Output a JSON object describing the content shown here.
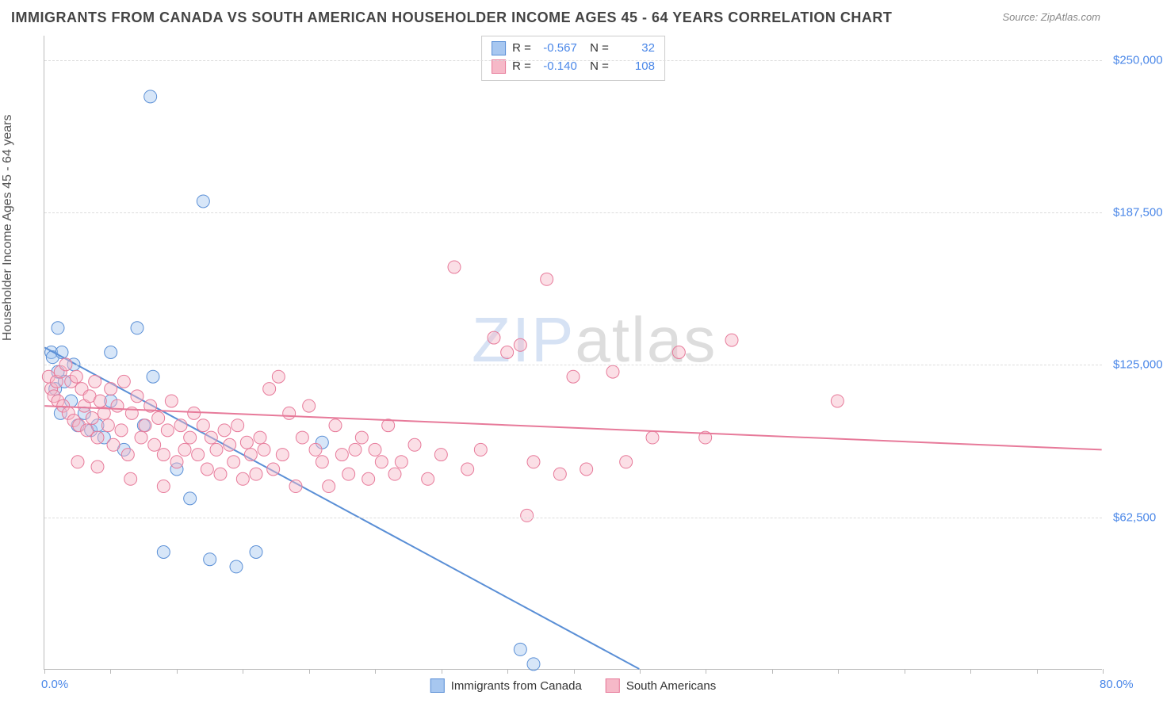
{
  "title": "IMMIGRANTS FROM CANADA VS SOUTH AMERICAN HOUSEHOLDER INCOME AGES 45 - 64 YEARS CORRELATION CHART",
  "source": "Source: ZipAtlas.com",
  "ylabel": "Householder Income Ages 45 - 64 years",
  "watermark": {
    "part1": "ZIP",
    "part2": "atlas"
  },
  "chart": {
    "type": "scatter",
    "background_color": "#ffffff",
    "grid_color": "#dddddd",
    "axis_color": "#bbbbbb",
    "xlim": [
      0,
      80
    ],
    "ylim": [
      0,
      260000
    ],
    "x_ticks": [
      0,
      5,
      10,
      15,
      20,
      25,
      30,
      35,
      40,
      45,
      50,
      55,
      60,
      65,
      70,
      75,
      80
    ],
    "x_tick_labels": {
      "0": "0.0%",
      "80": "80.0%"
    },
    "y_gridlines": [
      62500,
      125000,
      187500,
      250000
    ],
    "y_tick_labels": {
      "62500": "$62,500",
      "125000": "$125,000",
      "187500": "$187,500",
      "250000": "$250,000"
    },
    "marker_radius": 8,
    "marker_opacity": 0.45,
    "label_fontsize": 15,
    "tick_color": "#4a87e8"
  },
  "series": [
    {
      "name": "Immigrants from Canada",
      "color_fill": "#a7c7f0",
      "color_stroke": "#5a8fd6",
      "R": "-0.567",
      "N": "32",
      "trend": {
        "x1": 0,
        "y1": 132000,
        "x2": 45,
        "y2": 0,
        "width": 2
      },
      "points": [
        [
          0.5,
          130000
        ],
        [
          0.6,
          128000
        ],
        [
          0.8,
          115000
        ],
        [
          1.0,
          122000
        ],
        [
          1.2,
          105000
        ],
        [
          1.0,
          140000
        ],
        [
          1.3,
          130000
        ],
        [
          1.5,
          118000
        ],
        [
          2.0,
          110000
        ],
        [
          2.2,
          125000
        ],
        [
          2.5,
          100000
        ],
        [
          3.0,
          105000
        ],
        [
          3.5,
          98000
        ],
        [
          4.0,
          100000
        ],
        [
          4.5,
          95000
        ],
        [
          5.0,
          130000
        ],
        [
          5.0,
          110000
        ],
        [
          6.0,
          90000
        ],
        [
          7.0,
          140000
        ],
        [
          7.5,
          100000
        ],
        [
          8.0,
          235000
        ],
        [
          8.2,
          120000
        ],
        [
          9.0,
          48000
        ],
        [
          10.0,
          82000
        ],
        [
          11.0,
          70000
        ],
        [
          12.0,
          192000
        ],
        [
          12.5,
          45000
        ],
        [
          14.5,
          42000
        ],
        [
          16.0,
          48000
        ],
        [
          21.0,
          93000
        ],
        [
          36.0,
          8000
        ],
        [
          37.0,
          2000
        ]
      ]
    },
    {
      "name": "South Americans",
      "color_fill": "#f6b9c8",
      "color_stroke": "#e77a9a",
      "R": "-0.140",
      "N": "108",
      "trend": {
        "x1": 0,
        "y1": 108000,
        "x2": 80,
        "y2": 90000,
        "width": 2
      },
      "points": [
        [
          0.3,
          120000
        ],
        [
          0.5,
          115000
        ],
        [
          0.7,
          112000
        ],
        [
          0.9,
          118000
        ],
        [
          1.0,
          110000
        ],
        [
          1.2,
          122000
        ],
        [
          1.4,
          108000
        ],
        [
          1.6,
          125000
        ],
        [
          1.8,
          105000
        ],
        [
          2.0,
          118000
        ],
        [
          2.2,
          102000
        ],
        [
          2.4,
          120000
        ],
        [
          2.6,
          100000
        ],
        [
          2.8,
          115000
        ],
        [
          3.0,
          108000
        ],
        [
          3.2,
          98000
        ],
        [
          3.4,
          112000
        ],
        [
          3.6,
          103000
        ],
        [
          3.8,
          118000
        ],
        [
          4.0,
          95000
        ],
        [
          4.2,
          110000
        ],
        [
          4.5,
          105000
        ],
        [
          4.8,
          100000
        ],
        [
          5.0,
          115000
        ],
        [
          5.2,
          92000
        ],
        [
          5.5,
          108000
        ],
        [
          5.8,
          98000
        ],
        [
          6.0,
          118000
        ],
        [
          6.3,
          88000
        ],
        [
          6.6,
          105000
        ],
        [
          7.0,
          112000
        ],
        [
          7.3,
          95000
        ],
        [
          7.6,
          100000
        ],
        [
          8.0,
          108000
        ],
        [
          8.3,
          92000
        ],
        [
          8.6,
          103000
        ],
        [
          9.0,
          88000
        ],
        [
          9.3,
          98000
        ],
        [
          9.6,
          110000
        ],
        [
          10.0,
          85000
        ],
        [
          10.3,
          100000
        ],
        [
          10.6,
          90000
        ],
        [
          11.0,
          95000
        ],
        [
          11.3,
          105000
        ],
        [
          11.6,
          88000
        ],
        [
          12.0,
          100000
        ],
        [
          12.3,
          82000
        ],
        [
          12.6,
          95000
        ],
        [
          13.0,
          90000
        ],
        [
          13.3,
          80000
        ],
        [
          13.6,
          98000
        ],
        [
          14.0,
          92000
        ],
        [
          14.3,
          85000
        ],
        [
          14.6,
          100000
        ],
        [
          15.0,
          78000
        ],
        [
          15.3,
          93000
        ],
        [
          15.6,
          88000
        ],
        [
          16.0,
          80000
        ],
        [
          16.3,
          95000
        ],
        [
          16.6,
          90000
        ],
        [
          17.0,
          115000
        ],
        [
          17.3,
          82000
        ],
        [
          17.7,
          120000
        ],
        [
          18.0,
          88000
        ],
        [
          18.5,
          105000
        ],
        [
          19.0,
          75000
        ],
        [
          19.5,
          95000
        ],
        [
          20.0,
          108000
        ],
        [
          20.5,
          90000
        ],
        [
          21.0,
          85000
        ],
        [
          21.5,
          75000
        ],
        [
          22.0,
          100000
        ],
        [
          22.5,
          88000
        ],
        [
          23.0,
          80000
        ],
        [
          23.5,
          90000
        ],
        [
          24.0,
          95000
        ],
        [
          24.5,
          78000
        ],
        [
          25.0,
          90000
        ],
        [
          25.5,
          85000
        ],
        [
          26.0,
          100000
        ],
        [
          26.5,
          80000
        ],
        [
          27.0,
          85000
        ],
        [
          28.0,
          92000
        ],
        [
          29.0,
          78000
        ],
        [
          30.0,
          88000
        ],
        [
          31.0,
          165000
        ],
        [
          32.0,
          82000
        ],
        [
          33.0,
          90000
        ],
        [
          34.0,
          136000
        ],
        [
          35.0,
          130000
        ],
        [
          36.0,
          133000
        ],
        [
          37.0,
          85000
        ],
        [
          38.0,
          160000
        ],
        [
          39.0,
          80000
        ],
        [
          40.0,
          120000
        ],
        [
          41.0,
          82000
        ],
        [
          43.0,
          122000
        ],
        [
          44.0,
          85000
        ],
        [
          46.0,
          95000
        ],
        [
          48.0,
          130000
        ],
        [
          36.5,
          63000
        ],
        [
          50.0,
          95000
        ],
        [
          52.0,
          135000
        ],
        [
          60.0,
          110000
        ],
        [
          2.5,
          85000
        ],
        [
          4.0,
          83000
        ],
        [
          6.5,
          78000
        ],
        [
          9.0,
          75000
        ]
      ]
    }
  ],
  "legend_bottom": [
    {
      "label": "Immigrants from Canada",
      "fill": "#a7c7f0",
      "stroke": "#5a8fd6"
    },
    {
      "label": "South Americans",
      "fill": "#f6b9c8",
      "stroke": "#e77a9a"
    }
  ]
}
